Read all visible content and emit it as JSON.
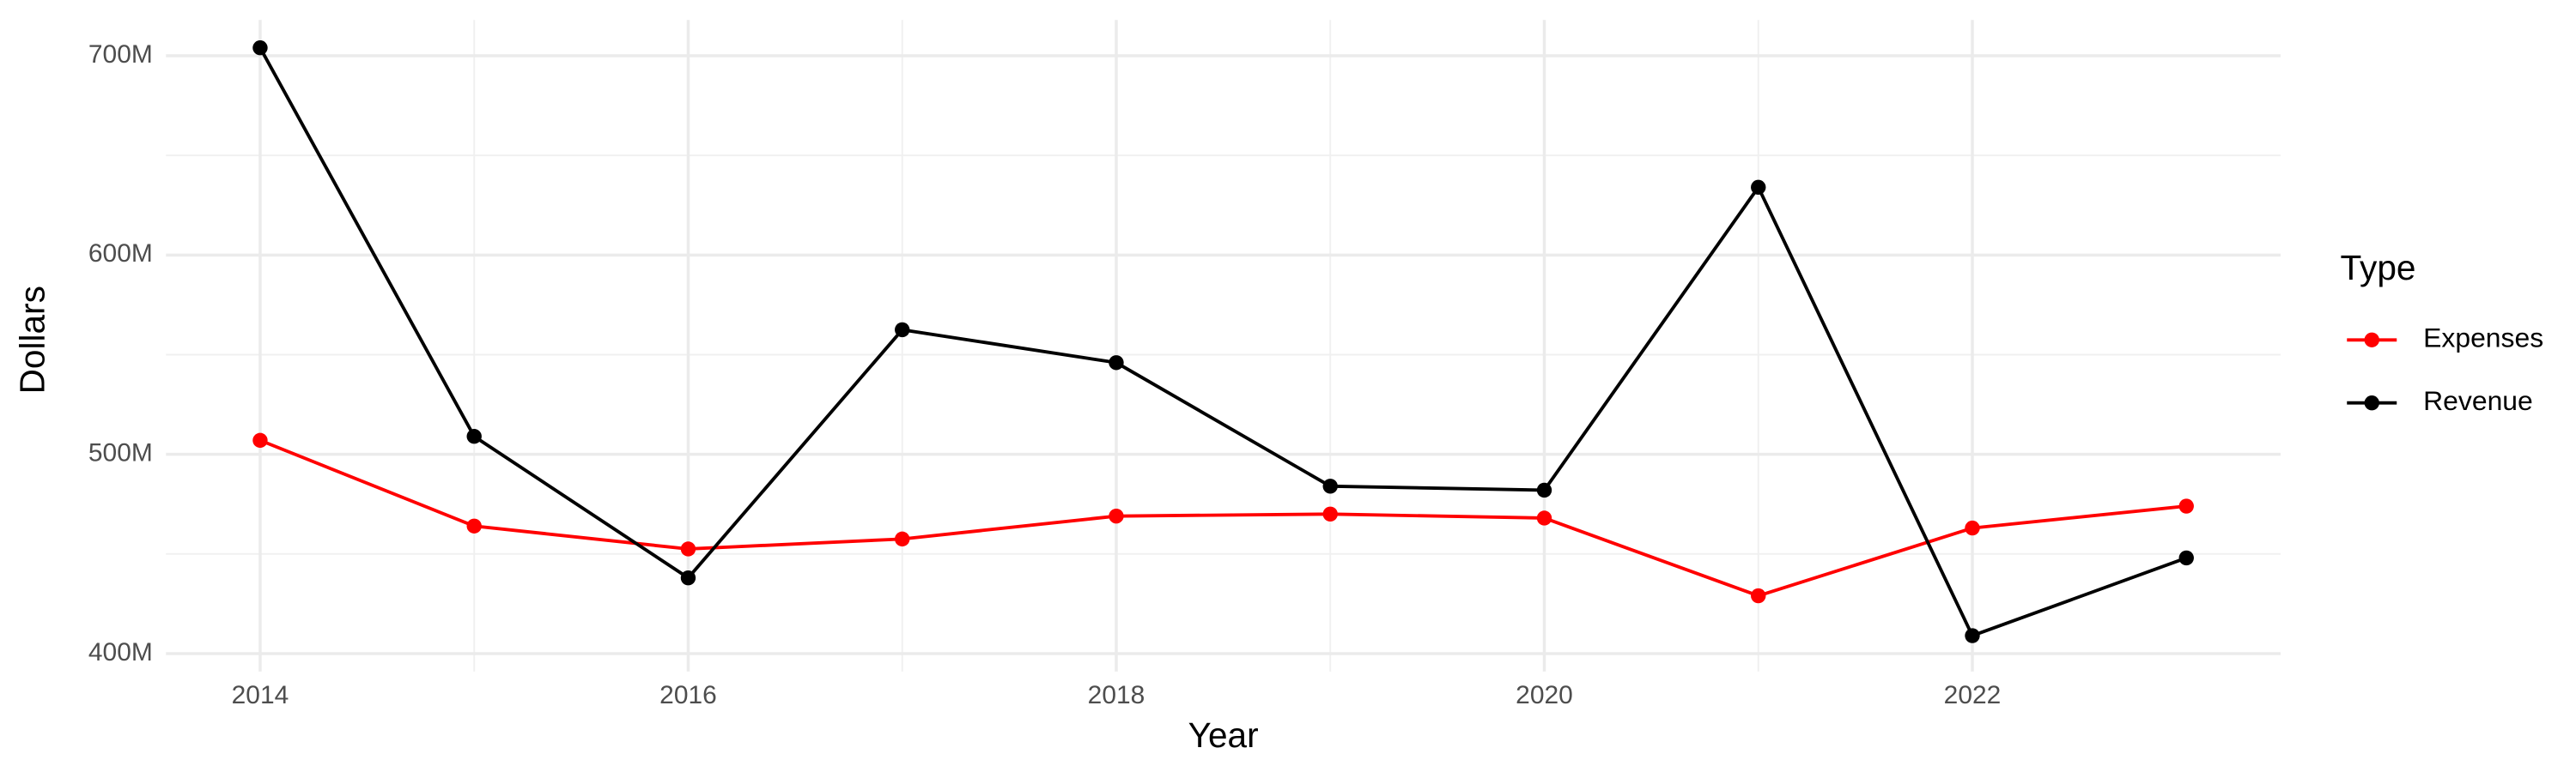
{
  "chart_data": {
    "type": "line",
    "x_label": "Year",
    "y_label": "Dollars",
    "legend_title": "Type",
    "x": [
      2014,
      2015,
      2016,
      2017,
      2018,
      2019,
      2020,
      2021,
      2022,
      2023
    ],
    "series": [
      {
        "name": "Expenses",
        "color": "#ff0000",
        "values": [
          507000000,
          464000000,
          452500000,
          457500000,
          469000000,
          470000000,
          468000000,
          429000000,
          463000000,
          474000000
        ]
      },
      {
        "name": "Revenue",
        "color": "#000000",
        "values": [
          704000000,
          509000000,
          438000000,
          562500000,
          546000000,
          484000000,
          482000000,
          634000000,
          409000000,
          448000000
        ]
      }
    ],
    "xlim": [
      2013.56,
      2023.44
    ],
    "xticks": [
      2014,
      2016,
      2018,
      2020,
      2022
    ],
    "ylim": [
      391000000,
      718000000
    ],
    "yticks": [
      {
        "value": 400000000,
        "label": "400M"
      },
      {
        "value": 500000000,
        "label": "500M"
      },
      {
        "value": 600000000,
        "label": "600M"
      },
      {
        "value": 700000000,
        "label": "700M"
      }
    ],
    "grid": true,
    "legend_position": "right"
  }
}
